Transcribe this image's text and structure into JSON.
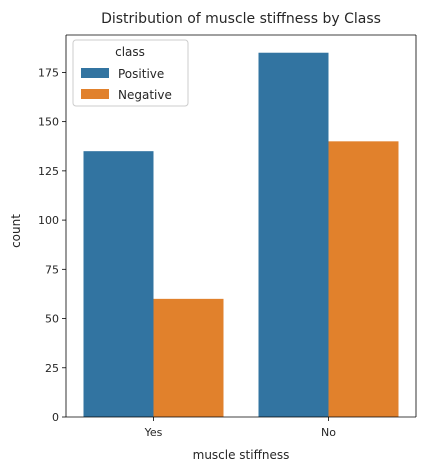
{
  "chart_data": {
    "type": "bar",
    "title": "Distribution of muscle stiffness by Class",
    "xlabel": "muscle stiffness",
    "ylabel": "count",
    "categories": [
      "Yes",
      "No"
    ],
    "series": [
      {
        "name": "Positive",
        "values": [
          135,
          185
        ],
        "color": "#3274a1"
      },
      {
        "name": "Negative",
        "values": [
          60,
          140
        ],
        "color": "#e1812c"
      }
    ],
    "ylim": [
      0,
      194
    ],
    "yticks": [
      0,
      25,
      50,
      75,
      100,
      125,
      150,
      175
    ],
    "legend": {
      "title": "class",
      "placement": "top-left"
    },
    "grid": false
  }
}
